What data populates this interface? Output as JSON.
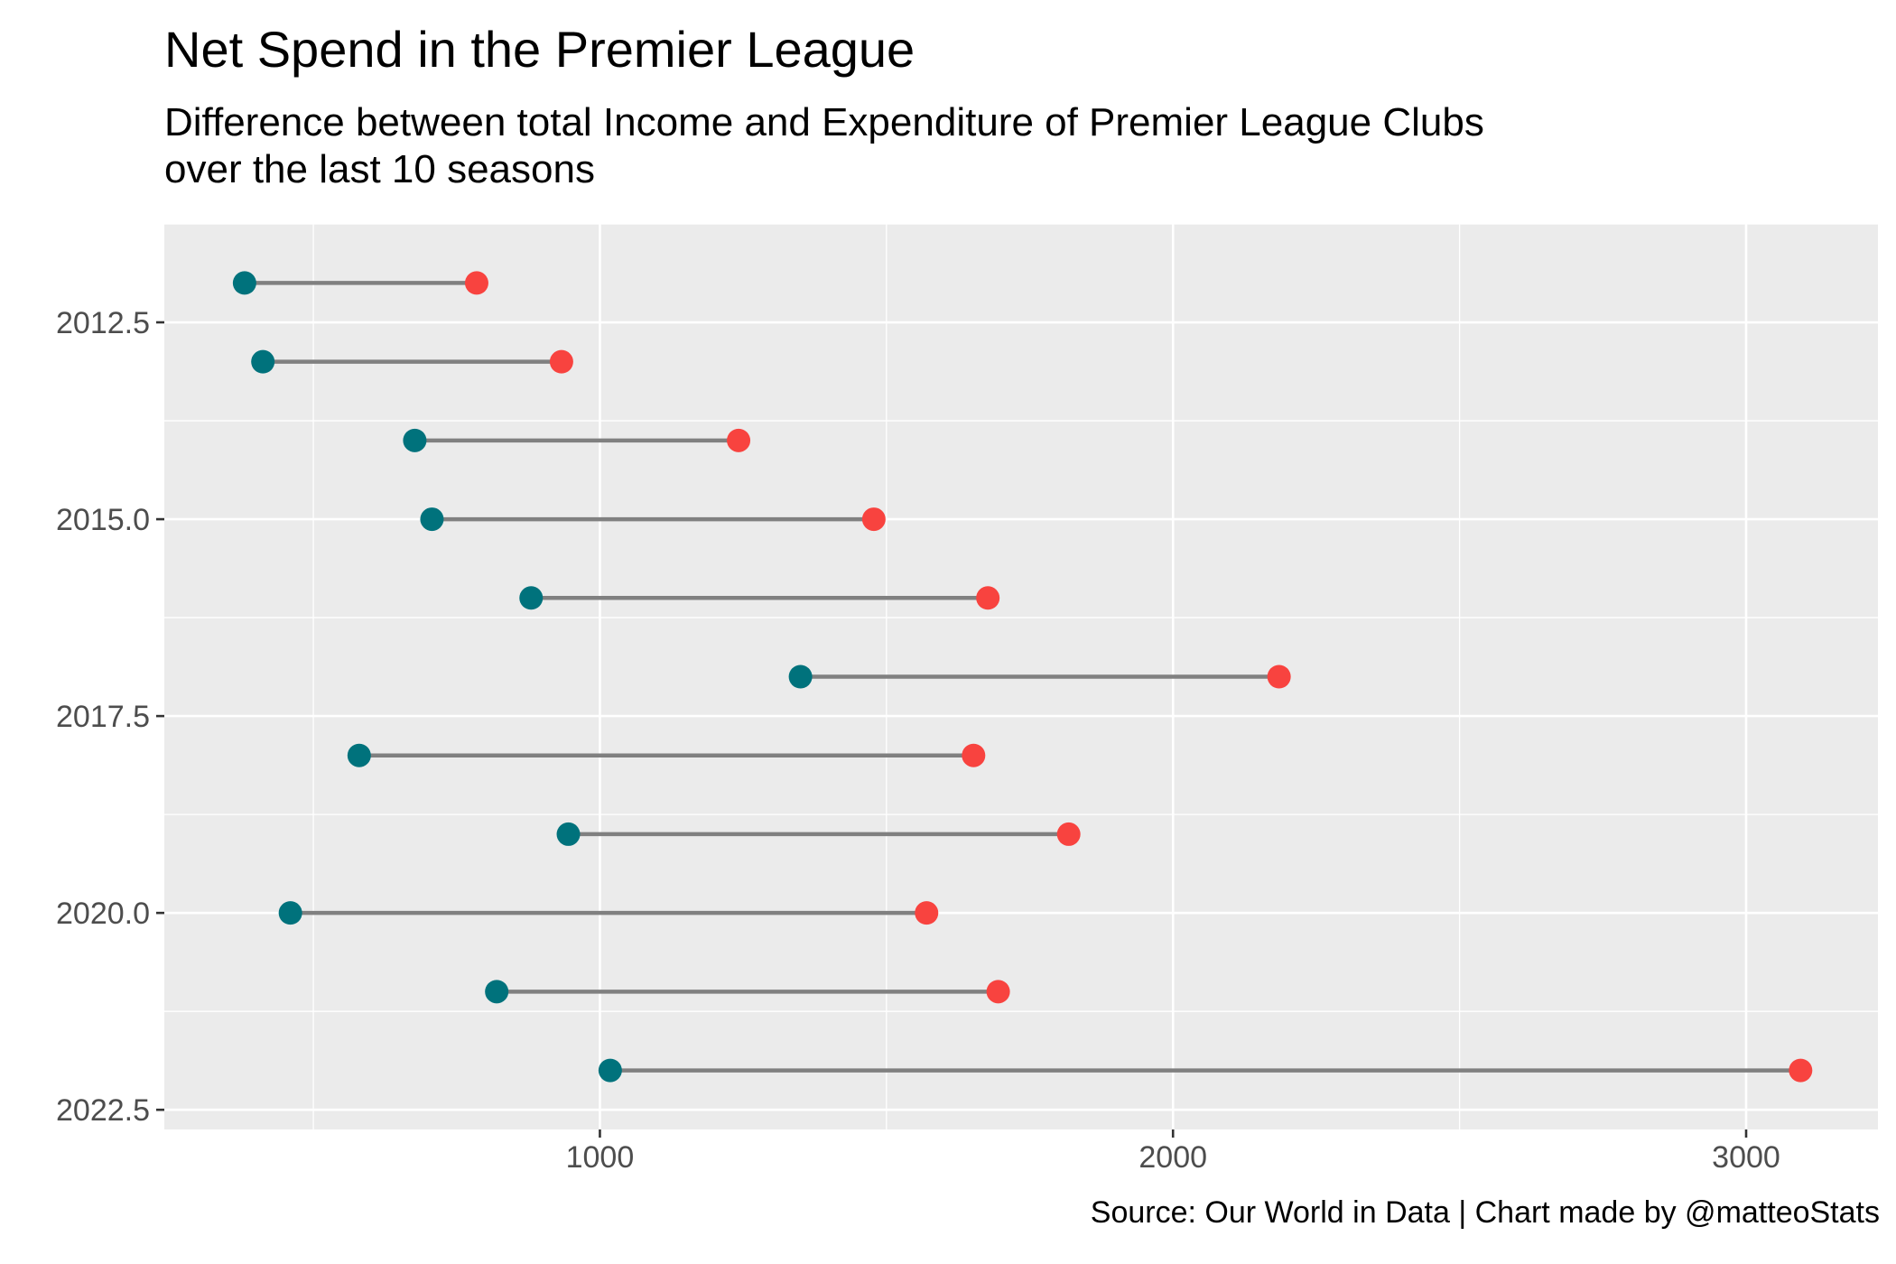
{
  "chart_data": {
    "type": "dumbbell",
    "title": "Net Spend in the Premier League",
    "subtitle_lines": [
      "Difference between total Income and Expenditure of Premier League Clubs",
      "over the last 10 seasons"
    ],
    "caption": "Source: Our World in Data | Chart made by @matteoStats",
    "xlim": [
      240,
      3230
    ],
    "ylim": [
      2011.25,
      2022.75
    ],
    "y_reversed": true,
    "x_ticks": [
      {
        "value": 1000,
        "label": "1000"
      },
      {
        "value": 2000,
        "label": "2000"
      },
      {
        "value": 3000,
        "label": "3000"
      }
    ],
    "y_ticks": [
      {
        "value": 2012.5,
        "label": "2012.5"
      },
      {
        "value": 2015.0,
        "label": "2015.0"
      },
      {
        "value": 2017.5,
        "label": "2017.5"
      },
      {
        "value": 2020.0,
        "label": "2020.0"
      },
      {
        "value": 2022.5,
        "label": "2022.5"
      }
    ],
    "points": [
      {
        "y": 2012,
        "low": 380,
        "high": 785
      },
      {
        "y": 2013,
        "low": 412,
        "high": 933
      },
      {
        "y": 2014,
        "low": 677,
        "high": 1242
      },
      {
        "y": 2015,
        "low": 707,
        "high": 1478
      },
      {
        "y": 2016,
        "low": 880,
        "high": 1677
      },
      {
        "y": 2017,
        "low": 1350,
        "high": 2185
      },
      {
        "y": 2018,
        "low": 580,
        "high": 1652
      },
      {
        "y": 2019,
        "low": 945,
        "high": 1818
      },
      {
        "y": 2020,
        "low": 460,
        "high": 1570
      },
      {
        "y": 2021,
        "low": 820,
        "high": 1695
      },
      {
        "y": 2022,
        "low": 1018,
        "high": 3095
      }
    ],
    "colors": {
      "panel": "#ebebeb",
      "grid": "#ffffff",
      "segment": "#808080",
      "low_point": "#00727c",
      "high_point": "#f8433f",
      "axis_text": "#4d4d4d",
      "tick": "#333333"
    },
    "grid": true
  }
}
